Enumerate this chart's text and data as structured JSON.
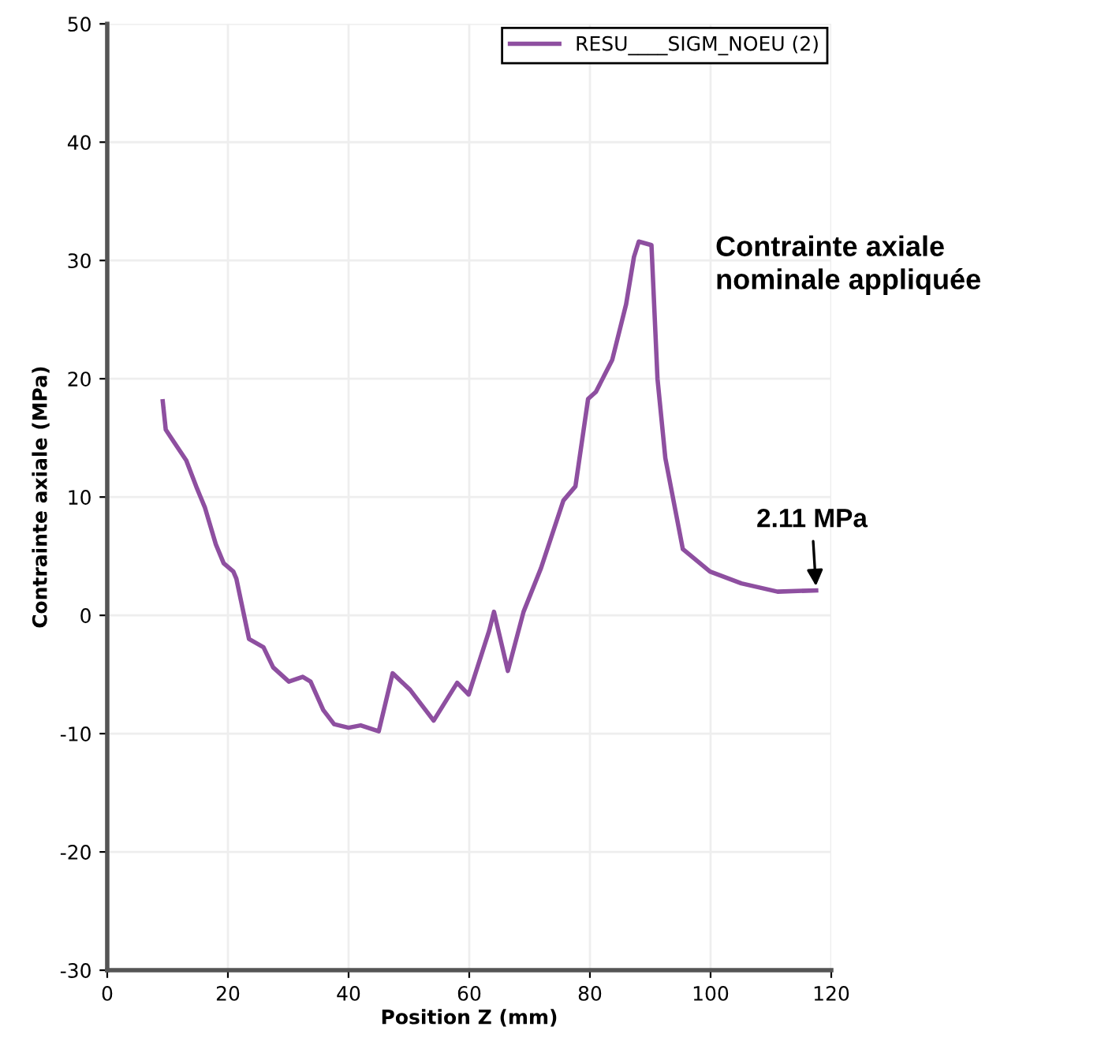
{
  "chart_data": {
    "type": "line",
    "xlabel": "Position Z (mm)",
    "ylabel": "Contrainte axiale (MPa)",
    "xlim": [
      0,
      120
    ],
    "xticks": [
      0,
      20,
      40,
      60,
      80,
      100,
      120
    ],
    "ylim": [
      -30,
      50
    ],
    "yticks": [
      -30,
      -20,
      -10,
      0,
      10,
      20,
      30,
      40,
      50
    ],
    "grid": true,
    "legend": "top right",
    "marker": "none",
    "line_style": "solid",
    "series": [
      {
        "name": "RESU____SIGM_NOEU (2)",
        "color": "#8e4fa0",
        "x": [
          9.2,
          9.7,
          11.0,
          13.1,
          14.9,
          16.2,
          18.0,
          19.3,
          20.9,
          21.4,
          23.5,
          25.9,
          27.5,
          30.1,
          32.4,
          33.7,
          35.8,
          37.6,
          40.0,
          42.0,
          45.0,
          47.3,
          50.2,
          54.1,
          58.0,
          59.9,
          63.3,
          64.1,
          66.4,
          69.0,
          71.9,
          75.6,
          77.6,
          79.7,
          81.0,
          83.7,
          86.0,
          87.3,
          88.1,
          90.2,
          91.2,
          92.5,
          95.4,
          99.9,
          105.1,
          111.1,
          117.5
        ],
        "values": [
          18.1,
          15.7,
          14.7,
          13.1,
          10.7,
          9.1,
          6.0,
          4.4,
          3.7,
          3.1,
          -2.0,
          -2.7,
          -4.4,
          -5.6,
          -5.2,
          -5.6,
          -8.0,
          -9.2,
          -9.5,
          -9.3,
          -9.8,
          -4.9,
          -6.3,
          -8.9,
          -5.7,
          -6.7,
          -1.3,
          0.3,
          -4.7,
          0.3,
          4.0,
          9.7,
          10.9,
          18.3,
          18.9,
          21.6,
          26.3,
          30.3,
          31.6,
          31.3,
          20.0,
          13.3,
          5.6,
          3.7,
          2.7,
          2.0,
          2.11
        ]
      }
    ],
    "annotations": [
      "Contrainte axiale\nnominale appliquée",
      {
        "text": "2.11 MPa",
        "x": 117.5,
        "y": 2.11
      }
    ]
  }
}
